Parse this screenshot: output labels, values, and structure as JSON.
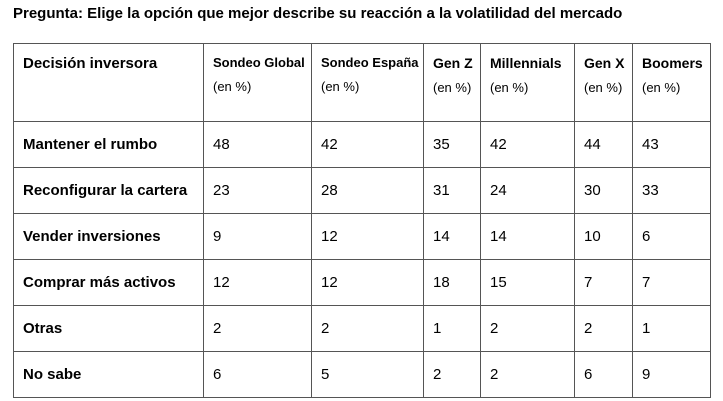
{
  "question": "Pregunta: Elige la opción que mejor describe su reacción a la volatilidad del mercado",
  "table": {
    "first_header": "Decisión inversora",
    "columns": [
      {
        "title": "Sondeo Global",
        "unit": "(en %)"
      },
      {
        "title": "Sondeo España",
        "unit": "(en %)"
      },
      {
        "title": "Gen Z",
        "unit": "(en %)"
      },
      {
        "title": "Millennials",
        "unit": "(en %)"
      },
      {
        "title": "Gen X",
        "unit": "(en %)"
      },
      {
        "title": "Boomers",
        "unit": "(en %)"
      }
    ],
    "rows": [
      {
        "label": "Mantener el rumbo",
        "values": [
          "48",
          "42",
          "35",
          "42",
          "44",
          "43"
        ]
      },
      {
        "label": "Reconfigurar la cartera",
        "values": [
          "23",
          "28",
          "31",
          "24",
          "30",
          "33"
        ]
      },
      {
        "label": "Vender inversiones",
        "values": [
          "9",
          "12",
          "14",
          "14",
          "10",
          "6"
        ]
      },
      {
        "label": "Comprar más activos",
        "values": [
          "12",
          "12",
          "18",
          "15",
          "7",
          "7"
        ]
      },
      {
        "label": "Otras",
        "values": [
          "2",
          "2",
          "1",
          "2",
          "2",
          "1"
        ]
      },
      {
        "label": "No sabe",
        "values": [
          "6",
          "5",
          "2",
          "2",
          "6",
          "9"
        ]
      }
    ]
  }
}
